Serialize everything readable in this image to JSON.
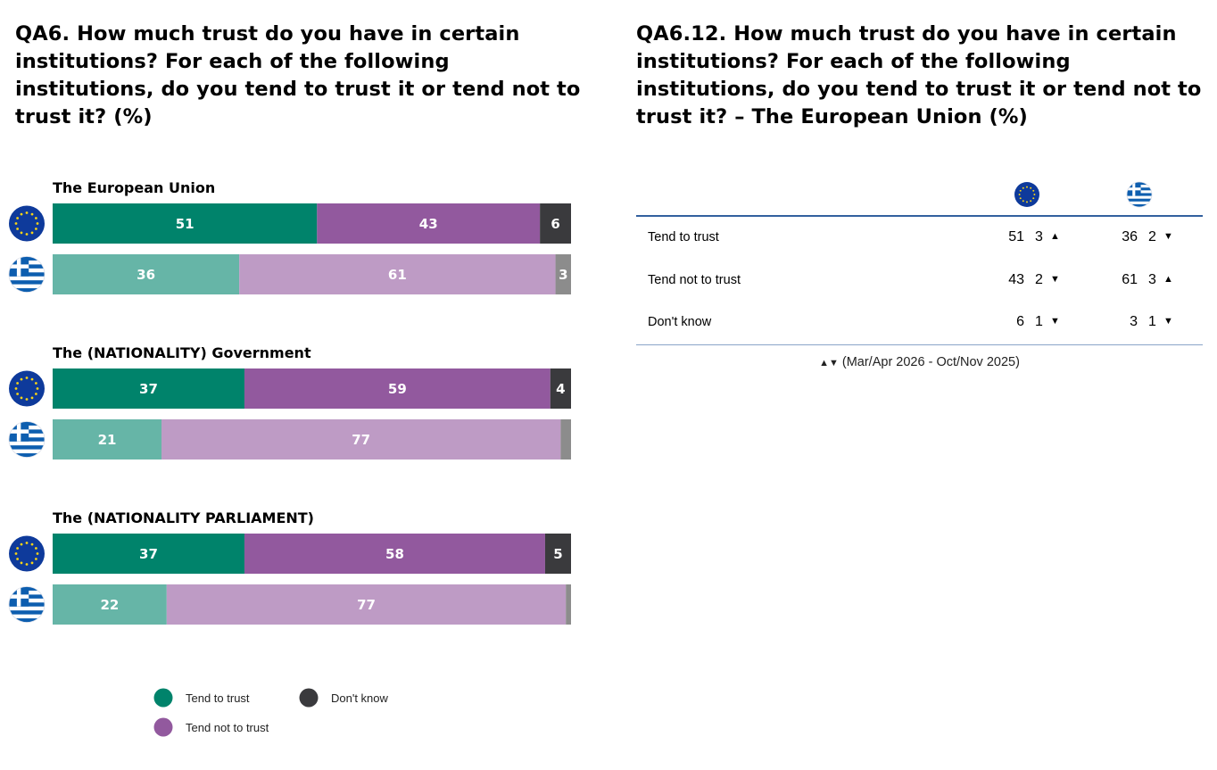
{
  "left_title": "QA6. How much trust do you have in certain institutions? For each of the following institutions, do you tend to trust it or tend not to trust it? (%)",
  "right_title": "QA6.12. How much trust do you have in certain institutions? For each of the following institutions, do you tend to trust it or tend not to trust it? – The European Union (%)",
  "colors": {
    "eu_trust": "#00836b",
    "eu_not_trust": "#92599e",
    "eu_dont_know": "#3a3a3d",
    "gr_trust": "#66b5a7",
    "gr_not_trust": "#be9bc5",
    "gr_dont_know": "#8c8c8c",
    "eu_flag_blue": "#0e3a9b",
    "eu_flag_star": "#f7d417",
    "gr_flag_blue": "#0d5eaf",
    "table_rule": "#33609e"
  },
  "chart_data": {
    "type": "bar",
    "orientation": "horizontal-stacked",
    "series_names": [
      "Tend to trust",
      "Tend not to trust",
      "Don't know"
    ],
    "groups": [
      {
        "title": "The European Union",
        "rows": [
          {
            "flag": "eu-flag",
            "values": [
              51,
              43,
              6
            ]
          },
          {
            "flag": "greece-flag",
            "values": [
              36,
              61,
              3
            ]
          }
        ]
      },
      {
        "title": "The (NATIONALITY) Government",
        "rows": [
          {
            "flag": "eu-flag",
            "values": [
              37,
              59,
              4
            ]
          },
          {
            "flag": "greece-flag",
            "values": [
              21,
              77,
              2
            ]
          }
        ]
      },
      {
        "title": "The (NATIONALITY PARLIAMENT)",
        "rows": [
          {
            "flag": "eu-flag",
            "values": [
              37,
              58,
              5
            ]
          },
          {
            "flag": "greece-flag",
            "values": [
              22,
              77,
              1
            ]
          }
        ]
      }
    ],
    "legend": [
      {
        "label": "Tend to trust",
        "color": "#00836b"
      },
      {
        "label": "Don't know",
        "color": "#3a3a3d"
      },
      {
        "label": "Tend not to trust",
        "color": "#92599e"
      }
    ]
  },
  "table": {
    "columns": [
      "eu-flag",
      "greece-flag"
    ],
    "rows": [
      {
        "label": "Tend to trust",
        "eu": {
          "value": "51",
          "change": "3",
          "dir": "up"
        },
        "gr": {
          "value": "36",
          "change": "2",
          "dir": "down"
        }
      },
      {
        "label": "Tend not to trust",
        "eu": {
          "value": "43",
          "change": "2",
          "dir": "down"
        },
        "gr": {
          "value": "61",
          "change": "3",
          "dir": "up"
        }
      },
      {
        "label": "Don't know",
        "eu": {
          "value": "6",
          "change": "1",
          "dir": "down"
        },
        "gr": {
          "value": "3",
          "change": "1",
          "dir": "down"
        }
      }
    ],
    "footnote": "(Mar/Apr 2026 - Oct/Nov 2025)"
  }
}
